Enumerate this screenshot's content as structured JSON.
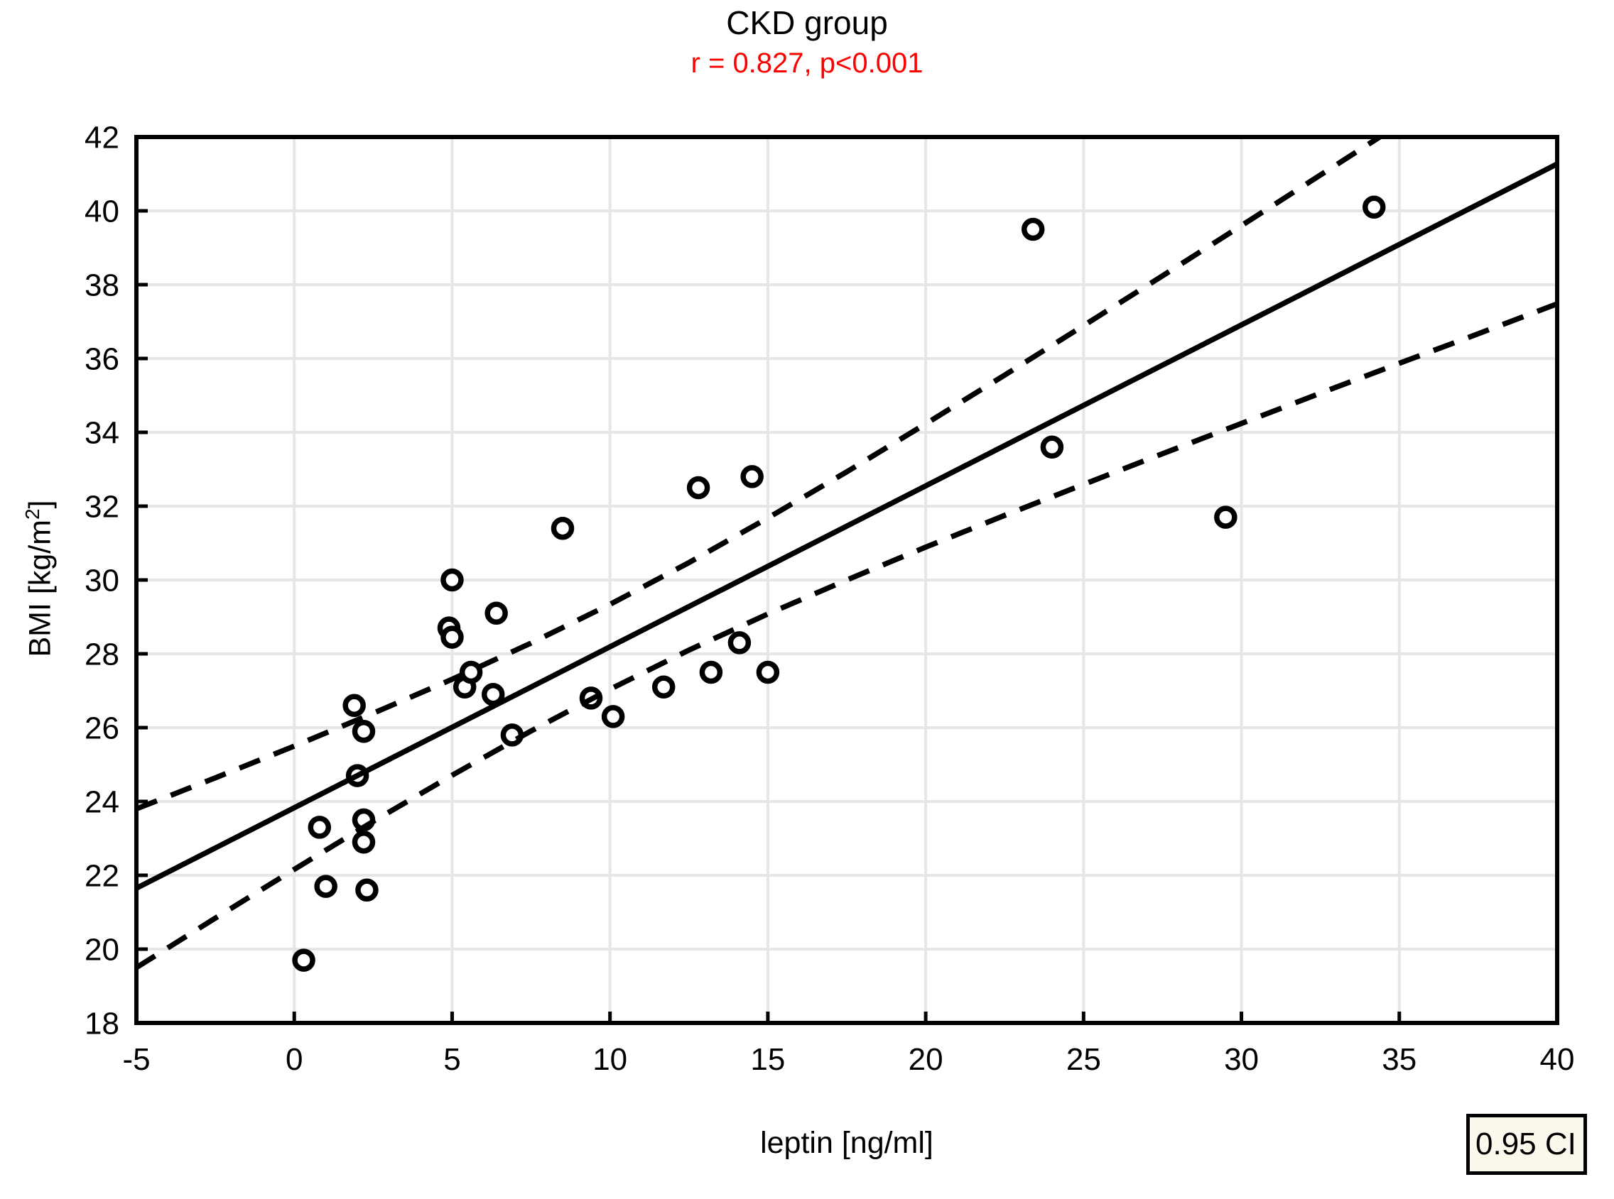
{
  "title": "CKD group",
  "subtitle": "r = 0.827, p<0.001",
  "legend": {
    "label": "0.95 CI"
  },
  "axes": {
    "x_title": "leptin [ng/ml]",
    "y_title_pre": "BMI [kg/m",
    "y_title_sup": "2",
    "y_title_post": "]"
  },
  "colors": {
    "ink": "#000000",
    "subtitle": "#fe0000",
    "grid": "#e6e6e6",
    "legend_bg": "#fbf8ec",
    "background": "#ffffff",
    "point_fill": "#ffffff"
  },
  "chart_data": {
    "type": "scatter",
    "title": "CKD group",
    "annotation": "r = 0.827, p<0.001",
    "correlation_r": 0.827,
    "p_value": "<0.001",
    "xlabel": "leptin [ng/ml]",
    "ylabel": "BMI [kg/m2]",
    "xlim": [
      -5,
      40
    ],
    "ylim": [
      18,
      42
    ],
    "x_ticks": [
      -5,
      0,
      5,
      10,
      15,
      20,
      25,
      30,
      35,
      40
    ],
    "y_ticks": [
      18,
      20,
      22,
      24,
      26,
      28,
      30,
      32,
      34,
      36,
      38,
      40,
      42
    ],
    "grid": true,
    "legend_label": "0.95 CI",
    "legend_position": "bottom-right",
    "points": [
      [
        0.3,
        19.7
      ],
      [
        0.8,
        23.3
      ],
      [
        1.0,
        21.7
      ],
      [
        1.9,
        26.6
      ],
      [
        2.0,
        24.7
      ],
      [
        2.2,
        25.9
      ],
      [
        2.2,
        23.5
      ],
      [
        2.2,
        22.9
      ],
      [
        2.3,
        21.6
      ],
      [
        4.9,
        28.7
      ],
      [
        5.0,
        28.45
      ],
      [
        5.0,
        30.0
      ],
      [
        5.4,
        27.1
      ],
      [
        5.6,
        27.5
      ],
      [
        6.3,
        26.9
      ],
      [
        6.4,
        29.1
      ],
      [
        6.9,
        25.8
      ],
      [
        8.5,
        31.4
      ],
      [
        9.4,
        26.8
      ],
      [
        10.1,
        26.3
      ],
      [
        11.7,
        27.1
      ],
      [
        12.8,
        32.5
      ],
      [
        13.2,
        27.5
      ],
      [
        14.1,
        28.3
      ],
      [
        14.5,
        32.8
      ],
      [
        15.0,
        27.5
      ],
      [
        23.4,
        39.5
      ],
      [
        24.0,
        33.6
      ],
      [
        29.5,
        31.7
      ],
      [
        34.2,
        40.1
      ]
    ],
    "regression_line": {
      "x": [
        -5,
        40
      ],
      "y": [
        21.65,
        41.27
      ]
    },
    "ci_upper": [
      [
        -5,
        23.8
      ],
      [
        -2.5,
        24.64
      ],
      [
        0,
        25.5
      ],
      [
        2.5,
        26.39
      ],
      [
        5,
        27.31
      ],
      [
        7.5,
        28.29
      ],
      [
        10,
        29.34
      ],
      [
        12.5,
        30.47
      ],
      [
        15,
        31.68
      ],
      [
        17.5,
        32.93
      ],
      [
        20,
        34.23
      ],
      [
        22.5,
        35.55
      ],
      [
        25,
        36.89
      ],
      [
        27.5,
        38.24
      ],
      [
        30,
        39.6
      ],
      [
        32.5,
        40.97
      ],
      [
        35,
        42.34
      ],
      [
        37.5,
        43.72
      ],
      [
        40,
        45.1
      ]
    ],
    "ci_lower": [
      [
        -5,
        19.5
      ],
      [
        -2.5,
        20.84
      ],
      [
        0,
        22.16
      ],
      [
        2.5,
        23.46
      ],
      [
        5,
        24.71
      ],
      [
        7.5,
        25.91
      ],
      [
        10,
        27.04
      ],
      [
        12.5,
        28.1
      ],
      [
        15,
        29.08
      ],
      [
        17.5,
        30.0
      ],
      [
        20,
        30.89
      ],
      [
        22.5,
        31.75
      ],
      [
        25,
        32.59
      ],
      [
        27.5,
        33.42
      ],
      [
        30,
        34.24
      ],
      [
        32.5,
        35.06
      ],
      [
        35,
        35.87
      ],
      [
        37.5,
        36.67
      ],
      [
        40,
        37.48
      ]
    ]
  }
}
